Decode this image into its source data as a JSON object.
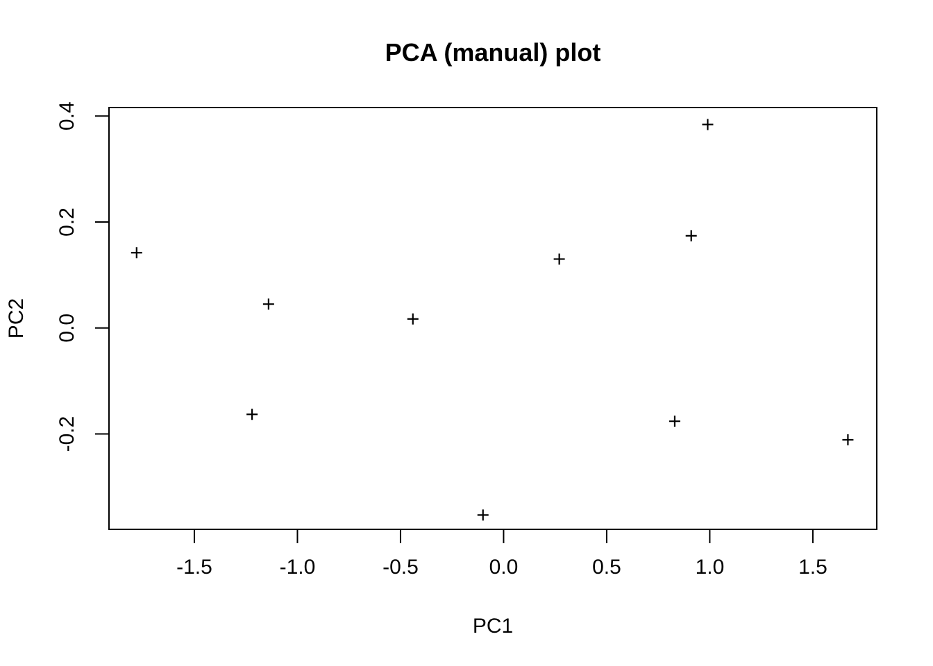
{
  "chart_data": {
    "type": "scatter",
    "title": "PCA (manual) plot",
    "xlabel": "PC1",
    "ylabel": "PC2",
    "marker": "plus-sign",
    "marker_color": "#000000",
    "background_color": "#ffffff",
    "grid": false,
    "legend": false,
    "xlim": [
      -1.914,
      1.81
    ],
    "ylim": [
      -0.38,
      0.416
    ],
    "x_ticks": [
      {
        "value": -1.5,
        "label": "-1.5"
      },
      {
        "value": -1.0,
        "label": "-1.0"
      },
      {
        "value": -0.5,
        "label": "-0.5"
      },
      {
        "value": 0.0,
        "label": "0.0"
      },
      {
        "value": 0.5,
        "label": "0.5"
      },
      {
        "value": 1.0,
        "label": "1.0"
      },
      {
        "value": 1.5,
        "label": "1.5"
      }
    ],
    "y_ticks": [
      {
        "value": -0.2,
        "label": "-0.2"
      },
      {
        "value": 0.0,
        "label": "0.0"
      },
      {
        "value": 0.2,
        "label": "0.2"
      },
      {
        "value": 0.4,
        "label": "0.4"
      }
    ],
    "points": [
      {
        "x": -1.78,
        "y": 0.142
      },
      {
        "x": -1.14,
        "y": 0.045
      },
      {
        "x": -1.22,
        "y": -0.163
      },
      {
        "x": -0.44,
        "y": 0.017
      },
      {
        "x": -0.1,
        "y": -0.353
      },
      {
        "x": 0.27,
        "y": 0.13
      },
      {
        "x": 0.99,
        "y": 0.384
      },
      {
        "x": 0.91,
        "y": 0.174
      },
      {
        "x": 0.83,
        "y": -0.176
      },
      {
        "x": 1.67,
        "y": -0.211
      }
    ]
  }
}
